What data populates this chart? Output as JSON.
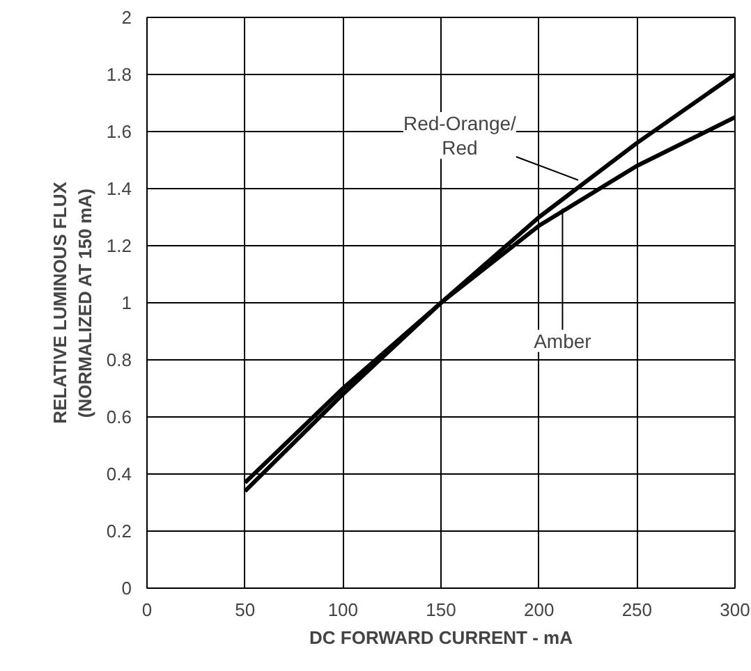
{
  "chart_data": {
    "type": "line",
    "xlabel": "DC FORWARD CURRENT - mA",
    "ylabel": "RELATIVE LUMINOUS FLUX\n(NORMALIZED AT 150 mA)",
    "x": [
      50,
      100,
      150,
      200,
      250,
      300
    ],
    "series": [
      {
        "color": "#000000",
        "values": [
          0.34,
          0.68,
          1.0,
          1.3,
          1.56,
          1.8
        ]
      },
      {
        "color": "#000000",
        "values": [
          0.37,
          0.7,
          1.0,
          1.27,
          1.48,
          1.65
        ]
      }
    ],
    "annotations": [
      {
        "text": "Red-Orange/\nRed",
        "x": 220,
        "y": 1.43
      },
      {
        "text": "Amber",
        "x": 212,
        "y": 1.33
      }
    ],
    "xlim": [
      0,
      300
    ],
    "ylim": [
      0,
      2
    ],
    "xticks": [
      0,
      50,
      100,
      150,
      200,
      250,
      300
    ],
    "yticks": [
      0,
      0.2,
      0.4,
      0.6,
      0.8,
      1,
      1.2,
      1.4,
      1.6,
      1.8,
      2
    ],
    "grid": true,
    "line_style": "solid"
  }
}
